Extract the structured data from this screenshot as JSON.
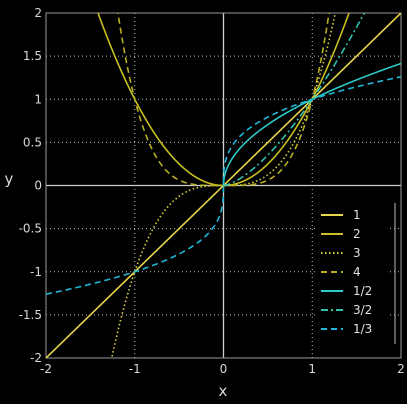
{
  "chart_data": {
    "type": "line",
    "xlabel": "x",
    "ylabel": "y",
    "xlim": [
      -2,
      2
    ],
    "ylim": [
      -2,
      2
    ],
    "x_ticks": [
      "-2",
      "-1",
      "0",
      "1",
      "2"
    ],
    "y_ticks": [
      "-2",
      "-1.5",
      "-1",
      "-0.5",
      "0",
      "0.5",
      "1",
      "1.5",
      "2"
    ],
    "grid": true,
    "legend_position": "lower-right",
    "series": [
      {
        "name": "1",
        "exponent": 1,
        "color": "#e8d44a",
        "style": "solid",
        "domain": "all"
      },
      {
        "name": "2",
        "exponent": 2,
        "color": "#c8c020",
        "style": "solid",
        "domain": "all"
      },
      {
        "name": "3",
        "exponent": 3,
        "color": "#d8d040",
        "style": "dotted",
        "domain": "all"
      },
      {
        "name": "4",
        "exponent": 4,
        "color": "#b8b020",
        "style": "dashed",
        "domain": "all"
      },
      {
        "name": "1/2",
        "exponent": 0.5,
        "color": "#2ec8c8",
        "style": "solid",
        "domain": "nonneg"
      },
      {
        "name": "3/2",
        "exponent": 1.5,
        "color": "#30c0b0",
        "style": "dashdot",
        "domain": "nonneg"
      },
      {
        "name": "1/3",
        "exponent": 0.3333333,
        "color": "#20b8d8",
        "style": "dashed",
        "domain": "all"
      }
    ]
  }
}
